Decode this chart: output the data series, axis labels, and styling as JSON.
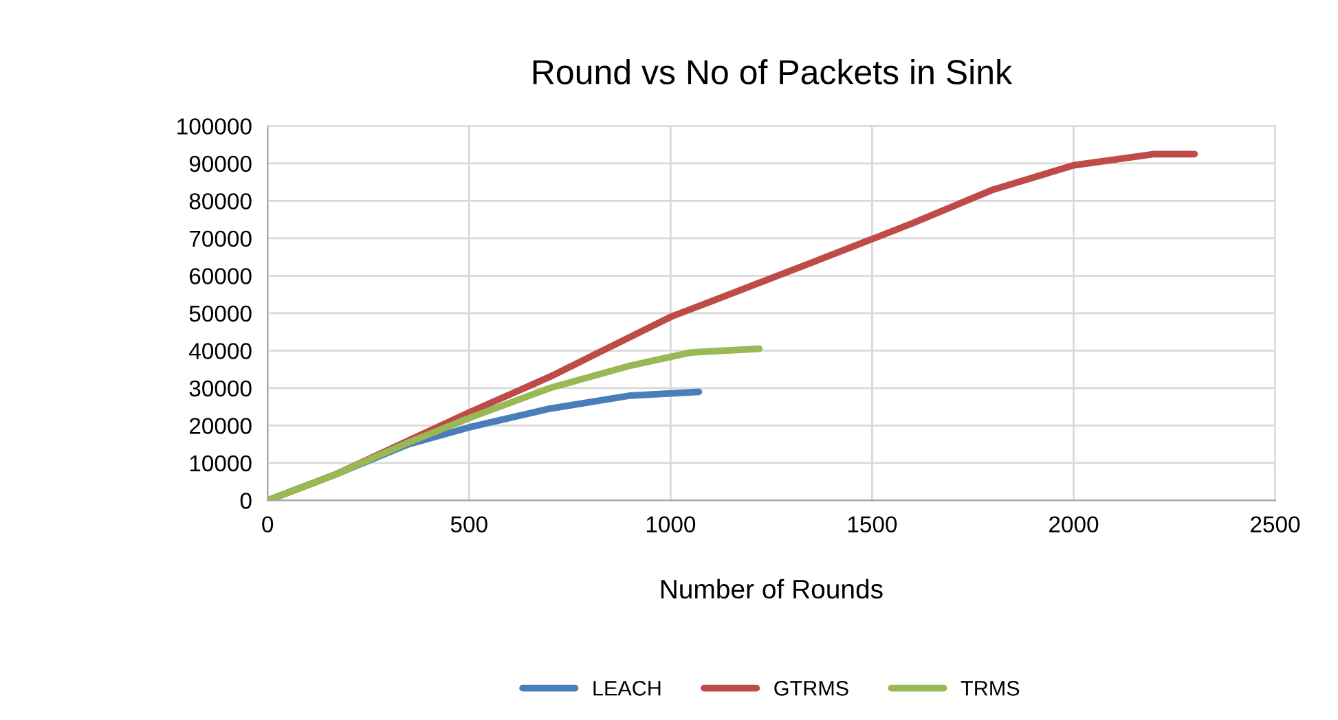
{
  "chart_data": {
    "type": "line",
    "title": "Round vs No of Packets in Sink",
    "xlabel": "Number of Rounds",
    "xlim": [
      0,
      2500
    ],
    "xticks": [
      0,
      500,
      1000,
      1500,
      2000,
      2500
    ],
    "ylim": [
      0,
      100000
    ],
    "yticks": [
      0,
      10000,
      20000,
      30000,
      40000,
      50000,
      60000,
      70000,
      80000,
      90000,
      100000
    ],
    "grid": true,
    "legend": "bottom",
    "series": [
      {
        "name": "LEACH",
        "color": "#4a7ebb",
        "x": [
          0,
          170,
          350,
          500,
          700,
          900,
          1070
        ],
        "values": [
          0,
          7000,
          15000,
          19500,
          24500,
          28000,
          29000
        ]
      },
      {
        "name": "GTRMS",
        "color": "#be4b48",
        "x": [
          0,
          170,
          350,
          500,
          700,
          1000,
          1350,
          1600,
          1800,
          2000,
          2200,
          2300
        ],
        "values": [
          0,
          7000,
          16000,
          23500,
          33000,
          49000,
          63500,
          74000,
          83000,
          89500,
          92500,
          92500
        ]
      },
      {
        "name": "TRMS",
        "color": "#98b954",
        "x": [
          0,
          170,
          350,
          500,
          700,
          900,
          1050,
          1220
        ],
        "values": [
          0,
          7000,
          15500,
          22000,
          30000,
          36000,
          39500,
          40500
        ]
      }
    ]
  }
}
